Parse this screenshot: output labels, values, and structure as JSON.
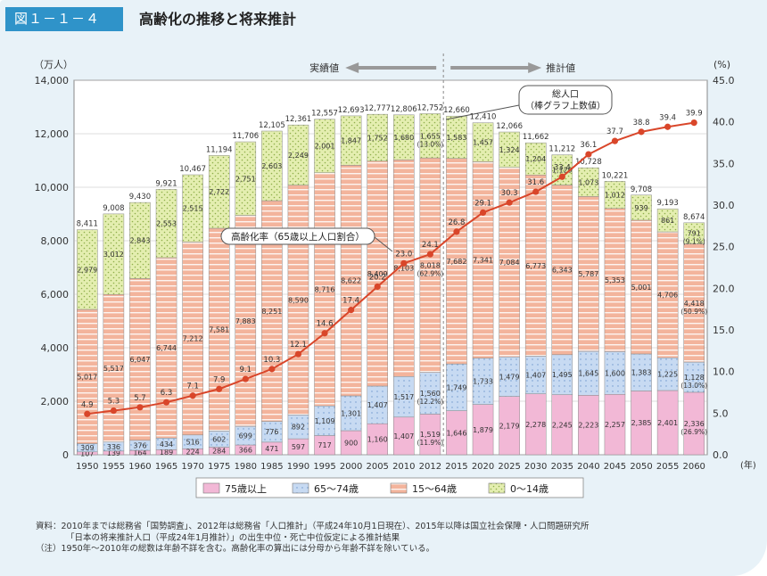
{
  "header": {
    "figure_number": "図１－１－４",
    "title": "高齢化の推移と将来推計"
  },
  "chart_data": {
    "type": "bar",
    "left_axis_unit": "（万人）",
    "right_axis_unit": "(%)",
    "x_unit": "(年)",
    "label_actual": "実績値",
    "label_projection": "推計値",
    "categories": [
      "1950",
      "1955",
      "1960",
      "1965",
      "1970",
      "1975",
      "1980",
      "1985",
      "1990",
      "1995",
      "2000",
      "2005",
      "2010",
      "2012",
      "2015",
      "2020",
      "2025",
      "2030",
      "2035",
      "2040",
      "2045",
      "2050",
      "2055",
      "2060"
    ],
    "ylim_left": [
      0,
      14000
    ],
    "yticks_left": [
      "0",
      "2,000",
      "4,000",
      "6,000",
      "8,000",
      "10,000",
      "12,000",
      "14,000"
    ],
    "ylim_right": [
      0,
      45
    ],
    "yticks_right": [
      "0.0",
      "5.0",
      "10.0",
      "15.0",
      "20.0",
      "25.0",
      "30.0",
      "35.0",
      "40.0",
      "45.0"
    ],
    "series": [
      {
        "name": "75歳以上",
        "color": "#f2b8d6",
        "values": [
          107,
          139,
          164,
          189,
          224,
          284,
          366,
          471,
          597,
          717,
          900,
          1160,
          1407,
          1519,
          1646,
          1879,
          2179,
          2278,
          2245,
          2223,
          2257,
          2385,
          2401,
          2336
        ]
      },
      {
        "name": "65～74歳",
        "color": "#c7daf2",
        "values": [
          309,
          336,
          376,
          434,
          516,
          602,
          699,
          776,
          892,
          1109,
          1301,
          1407,
          1517,
          1560,
          1749,
          1733,
          1479,
          1407,
          1495,
          1645,
          1600,
          1383,
          1225,
          1128
        ]
      },
      {
        "name": "15～64歳",
        "color": "#f3b49c",
        "values": [
          5017,
          5517,
          6047,
          6744,
          7212,
          7581,
          7883,
          8251,
          8590,
          8716,
          8622,
          8409,
          8103,
          8018,
          7682,
          7341,
          7084,
          6773,
          6343,
          5787,
          5353,
          5001,
          4706,
          4418
        ]
      },
      {
        "name": "0～14歳",
        "color": "#e4eeb0",
        "values": [
          2979,
          3012,
          2843,
          2553,
          2515,
          2722,
          2751,
          2603,
          2249,
          2001,
          1847,
          1752,
          1680,
          1655,
          1583,
          1457,
          1324,
          1204,
          1129,
          1073,
          1012,
          939,
          861,
          791
        ]
      }
    ],
    "totals": [
      "8,411",
      "9,008",
      "9,430",
      "9,921",
      "10,467",
      "11,194",
      "11,706",
      "12,105",
      "12,361",
      "12,557",
      "12,693",
      "12,777",
      "12,806",
      "12,752",
      "12,660",
      "12,410",
      "12,066",
      "11,662",
      "11,212",
      "10,728",
      "10,221",
      "9,708",
      "9,193",
      "8,674"
    ],
    "aging_rate": {
      "name": "高齢化率（65歳以上人口割合）",
      "color": "#d9462a",
      "values": [
        4.9,
        5.3,
        5.7,
        6.3,
        7.1,
        7.9,
        9.1,
        10.3,
        12.1,
        14.6,
        17.4,
        20.2,
        23.0,
        24.1,
        26.8,
        29.1,
        30.3,
        31.6,
        33.4,
        36.1,
        37.7,
        38.8,
        39.4,
        39.9
      ],
      "labels": [
        "4.9",
        "5.3",
        "5.7",
        "6.3",
        "7.1",
        "7.9",
        "9.1",
        "10.3",
        "12.1",
        "14.6",
        "17.4",
        "20.2",
        "23.0",
        "24.1",
        "26.8",
        "29.1",
        "30.3",
        "31.6",
        "33.4",
        "36.1",
        "37.7",
        "38.8",
        "39.4",
        "39.9"
      ]
    },
    "share_2012": {
      "75歳以上": "(11.9%)",
      "65～74歳": "(12.2%)",
      "15～64歳": "(62.9%)",
      "0～14歳": "(13.0%)"
    },
    "share_2060": {
      "75歳以上": "(26.9%)",
      "65～74歳": "(13.0%)",
      "15～64歳": "(50.9%)",
      "0～14歳": "(9.1%)"
    },
    "annotation_total": [
      "総人口",
      "（棒グラフ上数値）"
    ],
    "legend": [
      "75歳以上",
      "65～74歳",
      "15～64歳",
      "0～14歳"
    ]
  },
  "notes": {
    "source_line1": "資料：2010年までは総務省「国勢調査」、2012年は総務省「人口推計」（平成24年10月1日現在）、2015年以降は国立社会保障・人口問題研究所",
    "source_line2": "「日本の将来推計人口（平成24年1月推計）」の出生中位・死亡中位仮定による推計結果",
    "note_line": "（注）1950年～2010年の総数は年齢不詳を含む。高齢化率の算出には分母から年齢不詳を除いている。"
  }
}
